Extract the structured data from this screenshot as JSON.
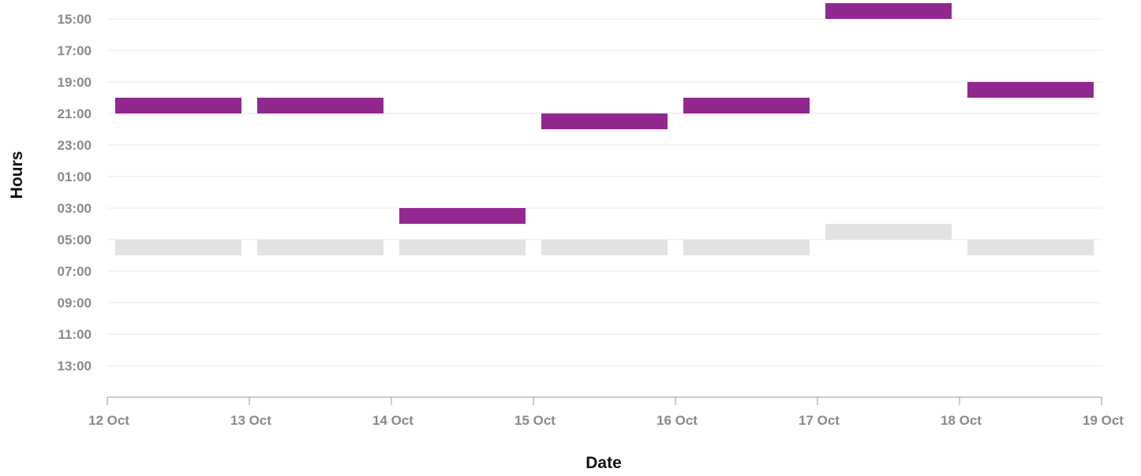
{
  "chart_data": {
    "type": "bar",
    "subtype": "floating-range",
    "xlabel": "Date",
    "ylabel": "Hours",
    "x_tick_labels": [
      "12 Oct",
      "13 Oct",
      "14 Oct",
      "15 Oct",
      "16 Oct",
      "17 Oct",
      "18 Oct",
      "19 Oct"
    ],
    "y_tick_labels": [
      "15:00",
      "17:00",
      "19:00",
      "21:00",
      "23:00",
      "01:00",
      "03:00",
      "05:00",
      "07:00",
      "09:00",
      "11:00",
      "13:00"
    ],
    "y_axis": {
      "start_hour": 14,
      "span_hours": 24,
      "reversed": true
    },
    "grid": true,
    "categories": [
      "12 Oct",
      "13 Oct",
      "14 Oct",
      "15 Oct",
      "16 Oct",
      "17 Oct",
      "18 Oct"
    ],
    "series": [
      {
        "color": "#922790",
        "values": [
          {
            "start": "20:00",
            "end": "21:00"
          },
          {
            "start": "20:00",
            "end": "21:00"
          },
          {
            "start": "03:00",
            "end": "04:00"
          },
          {
            "start": "21:00",
            "end": "22:00"
          },
          {
            "start": "20:00",
            "end": "21:00"
          },
          {
            "start": "14:00",
            "end": "15:00"
          },
          {
            "start": "19:00",
            "end": "20:00"
          }
        ]
      },
      {
        "color": "#e3e3e3",
        "values": [
          {
            "start": "05:00",
            "end": "06:00"
          },
          {
            "start": "05:00",
            "end": "06:00"
          },
          {
            "start": "05:00",
            "end": "06:00"
          },
          {
            "start": "05:00",
            "end": "06:00"
          },
          {
            "start": "05:00",
            "end": "06:00"
          },
          {
            "start": "04:00",
            "end": "05:00"
          },
          {
            "start": "05:00",
            "end": "06:00"
          }
        ]
      }
    ]
  }
}
